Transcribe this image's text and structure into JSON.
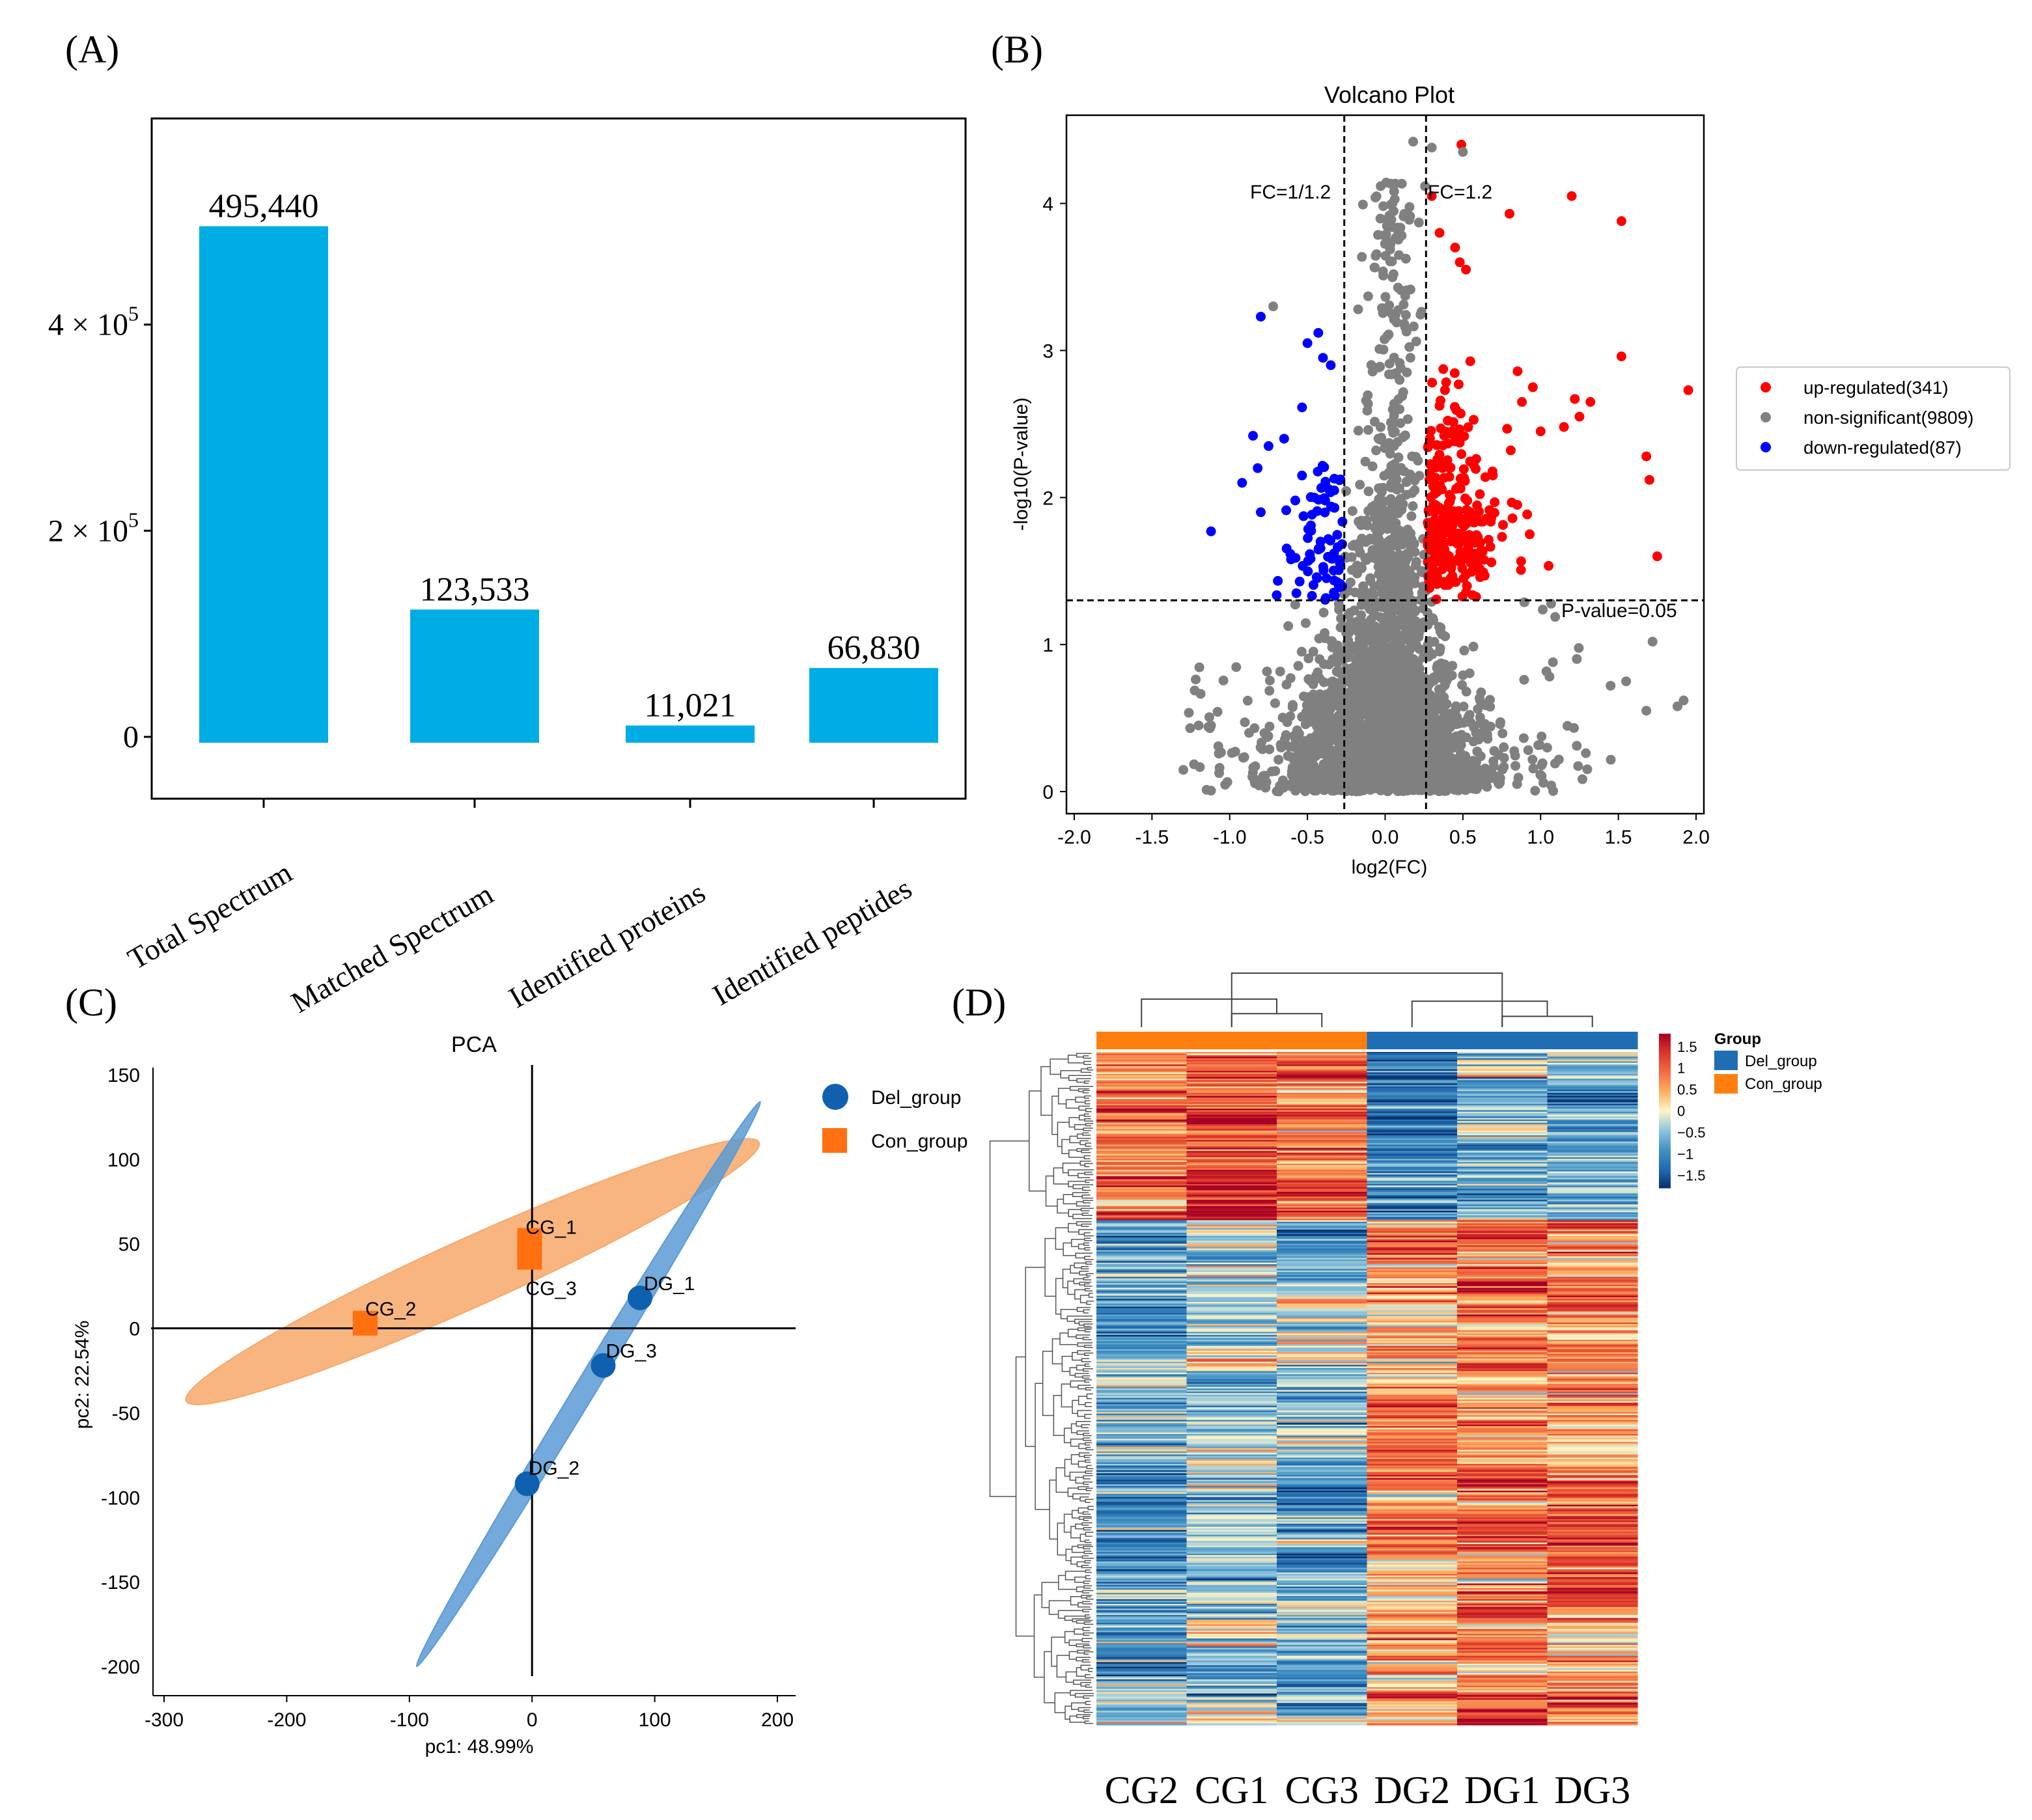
{
  "panel_labels": {
    "a": "(A)",
    "b": "(B)",
    "c": "(C)",
    "d": "(D)"
  },
  "chart_data": [
    {
      "id": "A",
      "type": "bar",
      "title": "",
      "xlabel": "",
      "ylabel": "",
      "categories": [
        "Total Spectrum",
        "Matched Spectrum",
        "Identified proteins",
        "Identified peptides"
      ],
      "values": [
        495440,
        123533,
        11021,
        66830
      ],
      "value_labels": [
        "495,440",
        "123,533",
        "11,021",
        "66,830"
      ],
      "y_ticks": [
        0,
        200000,
        400000
      ],
      "y_tick_labels": [
        {
          "base": "0",
          "exp": ""
        },
        {
          "base": "2 × 10",
          "exp": "5"
        },
        {
          "base": "4 × 10",
          "exp": "5"
        }
      ],
      "ylim": [
        -60000,
        600000
      ],
      "bar_color": "#00ACE4",
      "grid": false
    },
    {
      "id": "B",
      "type": "scatter",
      "title": "Volcano Plot",
      "xlabel": "log2(FC)",
      "ylabel": "-log10(P-value)",
      "xlim": [
        -2.05,
        2.05
      ],
      "ylim": [
        -0.15,
        4.6
      ],
      "x_ticks": [
        -2.0,
        -1.5,
        -1.0,
        -0.5,
        0.0,
        0.5,
        1.0,
        1.5,
        2.0
      ],
      "x_tick_labels": [
        "-2.0",
        "-1.5",
        "-1.0",
        "-0.5",
        "0.0",
        "0.5",
        "1.0",
        "1.5",
        "2.0"
      ],
      "y_ticks": [
        0,
        1,
        2,
        3,
        4
      ],
      "y_tick_labels": [
        "0",
        "1",
        "2",
        "3",
        "4"
      ],
      "fc_threshold_log2": 0.263,
      "p_threshold_log10": 1.301,
      "annotations": {
        "fc_low": "FC=1/1.2",
        "fc_high": "FC=1.2",
        "pval": "P-value=0.05"
      },
      "series": [
        {
          "name": "up-regulated(341)",
          "color": "#FF0000",
          "count": 341
        },
        {
          "name": "non-significant(9809)",
          "color": "#808080",
          "count": 9809
        },
        {
          "name": "down-regulated(87)",
          "color": "#0000FF",
          "count": 87
        }
      ],
      "highlight_points": {
        "up": [
          [
            0.49,
            4.4
          ],
          [
            1.2,
            4.05
          ],
          [
            0.3,
            4.05
          ],
          [
            0.8,
            3.93
          ],
          [
            1.52,
            3.88
          ],
          [
            0.35,
            3.8
          ],
          [
            0.45,
            3.7
          ],
          [
            0.48,
            3.6
          ],
          [
            0.52,
            3.55
          ],
          [
            1.52,
            2.96
          ],
          [
            1.95,
            2.73
          ],
          [
            1.22,
            2.67
          ],
          [
            1.32,
            2.65
          ],
          [
            1.25,
            2.55
          ],
          [
            1.15,
            2.48
          ],
          [
            1.68,
            2.28
          ],
          [
            1.7,
            2.12
          ],
          [
            1.75,
            1.6
          ],
          [
            0.95,
            2.75
          ],
          [
            0.88,
            2.65
          ],
          [
            1.0,
            2.45
          ],
          [
            0.93,
            1.75
          ],
          [
            0.85,
            1.95
          ]
        ],
        "down": [
          [
            -0.8,
            3.23
          ],
          [
            -1.12,
            1.77
          ],
          [
            -0.43,
            3.12
          ],
          [
            -0.5,
            3.05
          ],
          [
            -0.4,
            2.95
          ],
          [
            -0.35,
            2.9
          ],
          [
            -0.85,
            2.42
          ],
          [
            -0.82,
            2.2
          ],
          [
            -0.92,
            2.1
          ],
          [
            -0.8,
            1.9
          ],
          [
            -0.75,
            2.35
          ],
          [
            -0.65,
            2.4
          ]
        ]
      },
      "nonsig_extremes": [
        [
          1.92,
          0.62
        ],
        [
          1.88,
          0.58
        ],
        [
          1.68,
          0.55
        ],
        [
          1.72,
          1.02
        ],
        [
          1.55,
          0.75
        ],
        [
          1.45,
          0.72
        ],
        [
          -1.2,
          0.45
        ],
        [
          -1.12,
          0.45
        ],
        [
          -0.72,
          3.3
        ],
        [
          0.5,
          4.35
        ],
        [
          0.18,
          4.42
        ],
        [
          0.3,
          4.38
        ]
      ]
    },
    {
      "id": "C",
      "type": "scatter",
      "title": "PCA",
      "xlabel": "pc1: 48.99%",
      "ylabel": "pc2: 22.54%",
      "xlim": [
        -310,
        215
      ],
      "ylim": [
        -215,
        155
      ],
      "x_ticks": [
        -300,
        -200,
        -100,
        0,
        100,
        200
      ],
      "x_tick_labels": [
        "-300",
        "-200",
        "-100",
        "0",
        "100",
        "200"
      ],
      "y_ticks": [
        -200,
        -150,
        -100,
        -50,
        0,
        50,
        100,
        150
      ],
      "y_tick_labels": [
        "-200",
        "-150",
        "-100",
        "-50",
        "0",
        "50",
        "100",
        "150"
      ],
      "series": [
        {
          "name": "Del_group",
          "marker": "circle",
          "color": "#1060B0",
          "ellipse_color": "#5B9BD5",
          "points": [
            {
              "label": "DG_1",
              "x": 88,
              "y": 18
            },
            {
              "label": "DG_2",
              "x": -4,
              "y": -92
            },
            {
              "label": "DG_3",
              "x": 58,
              "y": -22
            }
          ],
          "ellipse_ends": [
            [
              186,
              134
            ],
            [
              -94,
              -200
            ]
          ],
          "ellipse_width": 16
        },
        {
          "name": "Con_group",
          "marker": "square",
          "color": "#FF7010",
          "ellipse_color": "#F7A869",
          "points": [
            {
              "label": "CG_1",
              "x": -2,
              "y": 52
            },
            {
              "label": "CG_2",
              "x": -136,
              "y": 3
            },
            {
              "label": "CG_3",
              "x": -2,
              "y": 42
            }
          ],
          "ellipse_ends": [
            [
              185,
              110
            ],
            [
              -282,
              -43
            ]
          ],
          "ellipse_width": 52
        }
      ]
    },
    {
      "id": "D",
      "type": "heatmap",
      "title": "",
      "columns": [
        "CG2",
        "CG1",
        "CG3",
        "DG2",
        "DG1",
        "DG3"
      ],
      "column_groups": [
        "Con_group",
        "Con_group",
        "Con_group",
        "Del_group",
        "Del_group",
        "Del_group"
      ],
      "group_colors": {
        "Del_group": "#1F6EB4",
        "Con_group": "#FF7F0E"
      },
      "legend_title": "Group",
      "legend_items": [
        "Del_group",
        "Con_group"
      ],
      "colorbar_ticks": [
        1.5,
        1,
        0.5,
        0,
        -0.5,
        -1,
        -1.5
      ],
      "colorbar_labels": [
        "1.5",
        "1",
        "0.5",
        "0",
        "−0.5",
        "−1",
        "−1.5"
      ],
      "zlim": [
        -1.8,
        1.8
      ],
      "n_rows": 428,
      "column_dendrogram": [
        {
          "left": 1,
          "right": 2,
          "height": 0.25
        },
        {
          "left": 0,
          "right": 1.5,
          "height": 0.52
        },
        {
          "left": 4,
          "right": 5,
          "height": 0.2
        },
        {
          "left": 3,
          "right": 4.5,
          "height": 0.48
        },
        {
          "left": 1.0,
          "right": 4.0,
          "height": 1.0
        }
      ],
      "row_blocks": [
        {
          "fraction": 0.25,
          "means": [
            0.8,
            1.05,
            0.9,
            -1.0,
            -0.55,
            -0.7
          ]
        },
        {
          "fraction": 0.75,
          "means": [
            -0.85,
            -0.45,
            -0.5,
            0.7,
            0.85,
            0.8
          ]
        }
      ]
    }
  ]
}
